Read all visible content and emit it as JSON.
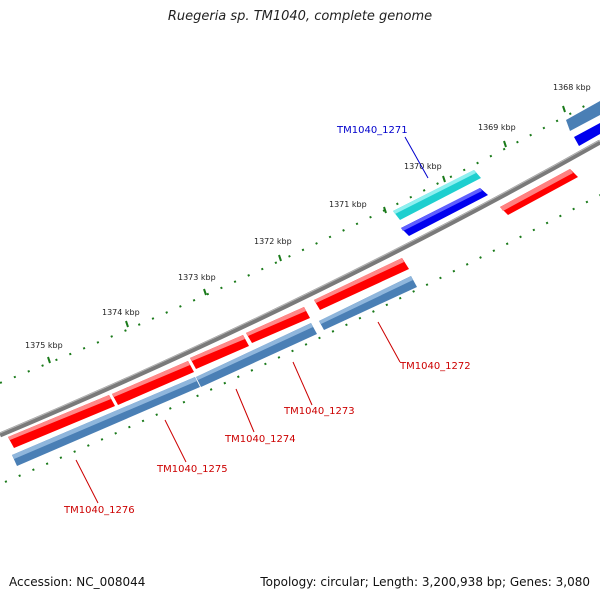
{
  "title": "Ruegeria sp. TM1040, complete genome",
  "accession_text": "Accession: NC_008044",
  "summary_text": "Topology: circular; Length: 3,200,938 bp; Genes: 3,080",
  "colors": {
    "backbone": "#7a7a7a",
    "forward_gene": "#ff0000",
    "forward_cds": "#4a7fb5",
    "reverse_gene": "#0000ee",
    "reverse_cds": "#4a7fb5",
    "highlight_gene": "#1ecfcf",
    "tick": "#1a7a1a",
    "label_forward": "#cc0000",
    "label_reverse": "#0000cc"
  },
  "tick_labels": [
    "1368 kbp",
    "1369 kbp",
    "1370 kbp",
    "1371 kbp",
    "1372 kbp",
    "1373 kbp",
    "1374 kbp",
    "1375 kbp"
  ],
  "genes": [
    {
      "label": "TM1040_1271",
      "strand": "reverse",
      "type": "rRNA-like"
    },
    {
      "label": "TM1040_1272",
      "strand": "forward"
    },
    {
      "label": "TM1040_1273",
      "strand": "forward"
    },
    {
      "label": "TM1040_1274",
      "strand": "forward"
    },
    {
      "label": "TM1040_1275",
      "strand": "forward"
    },
    {
      "label": "TM1040_1276",
      "strand": "forward"
    }
  ]
}
